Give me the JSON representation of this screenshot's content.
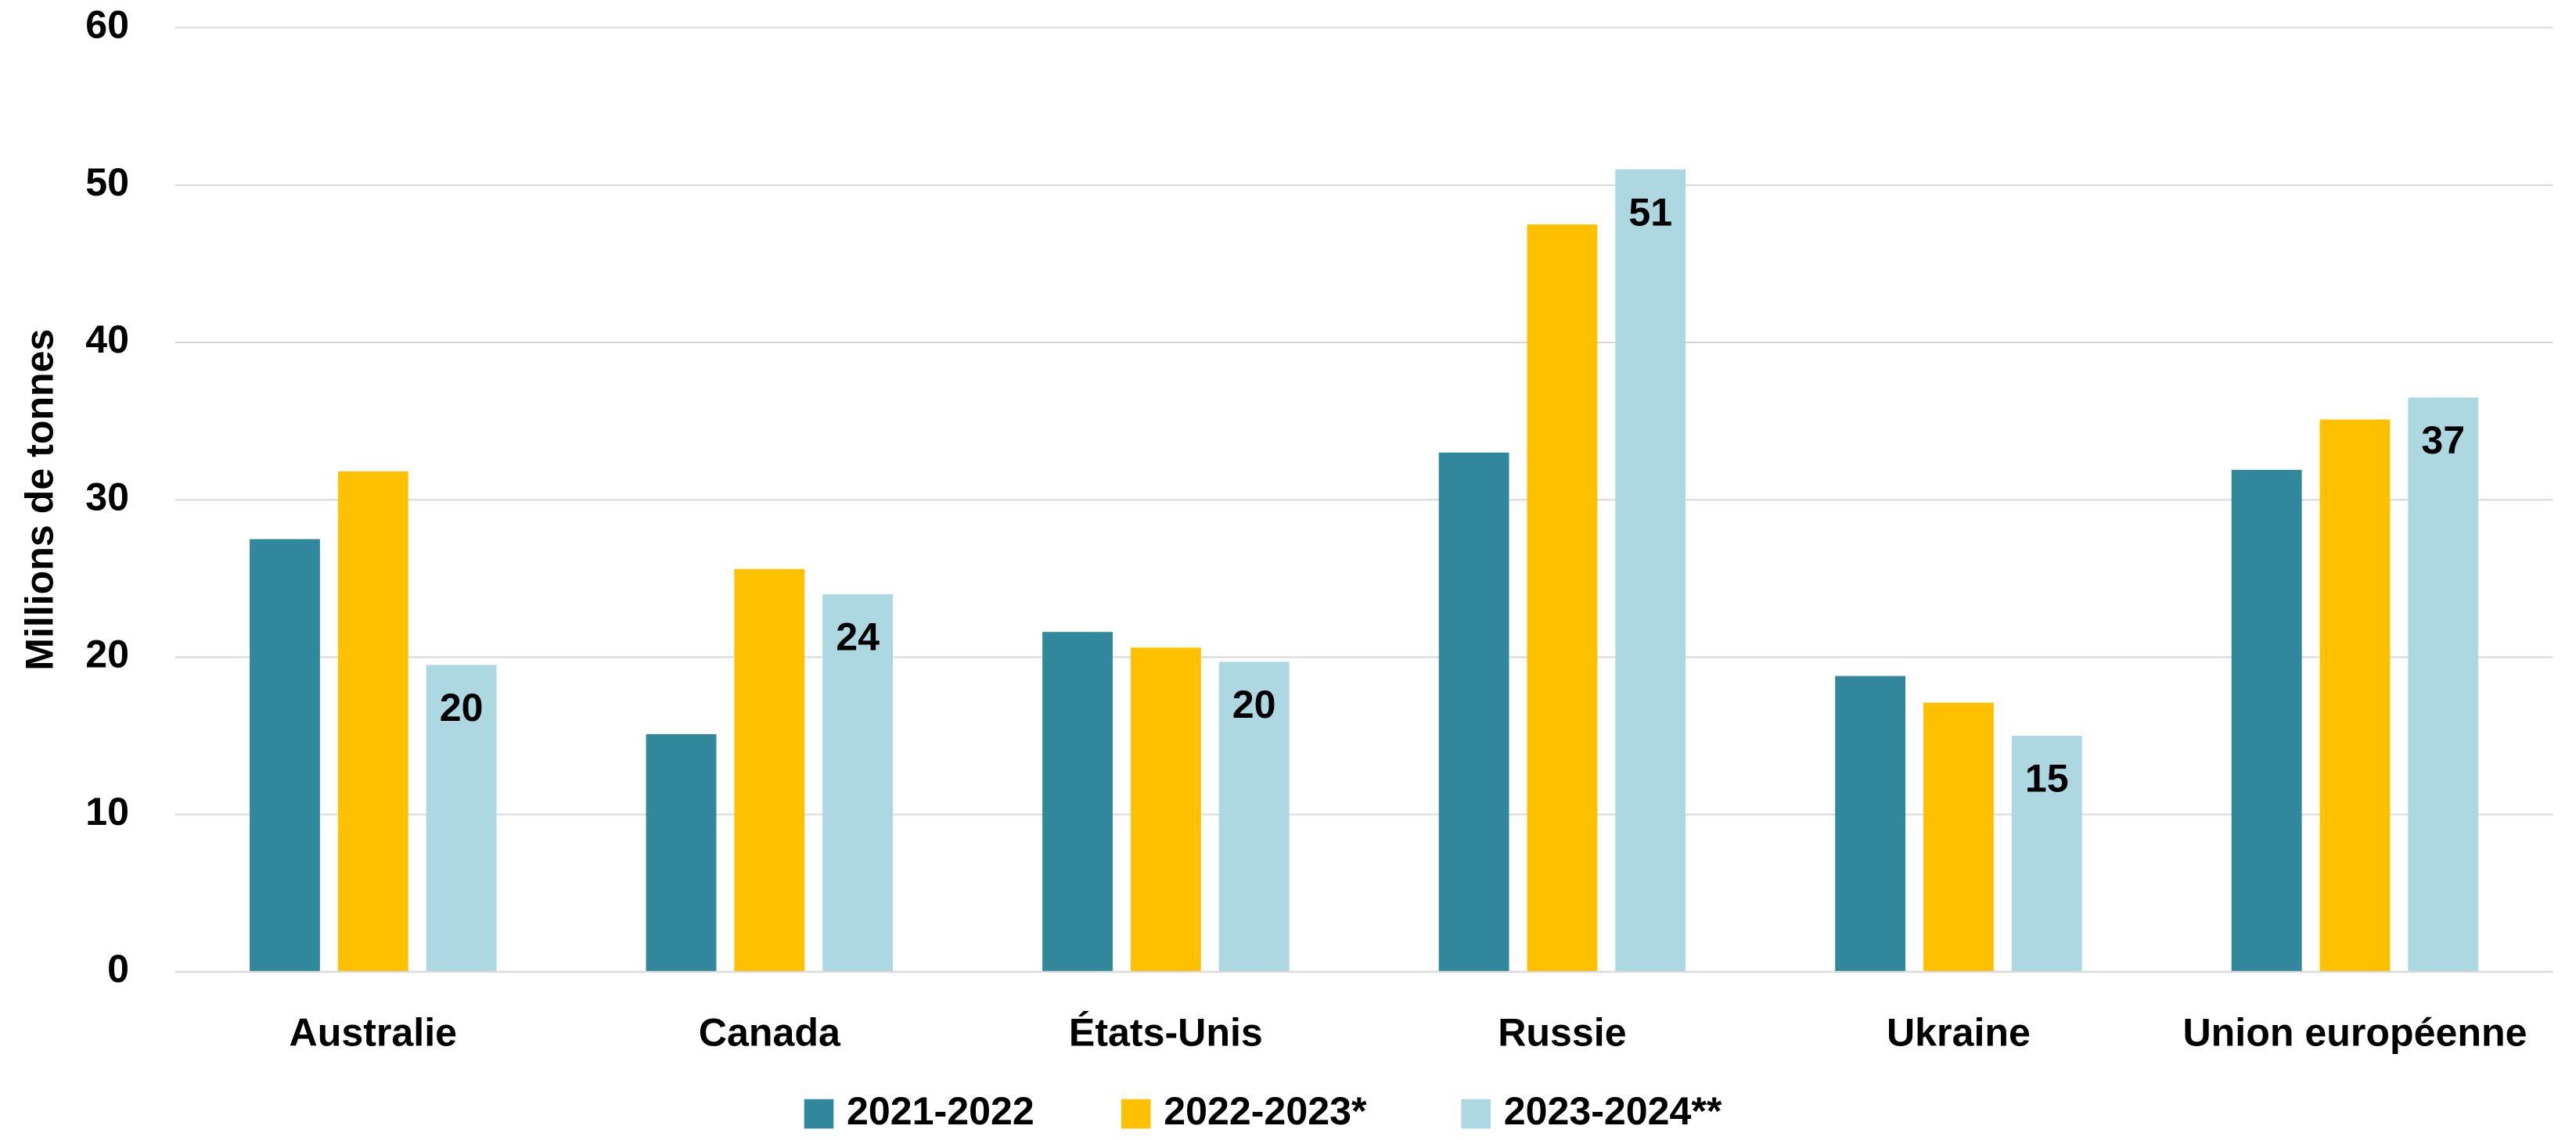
{
  "chart_data": {
    "type": "bar",
    "y_label": "Millions de tonnes",
    "categories": [
      "Australie",
      "Canada",
      "États-Unis",
      "Russie",
      "Ukraine",
      "Union européenne"
    ],
    "series": [
      {
        "name": "2021-2022",
        "color": "#31879c",
        "values": [
          27.5,
          15.1,
          21.6,
          33,
          18.8,
          31.9
        ]
      },
      {
        "name": "2022-2023*",
        "color": "#ffc000",
        "values": [
          31.8,
          25.6,
          20.6,
          47.5,
          17.1,
          35.1
        ]
      },
      {
        "name": "2023-2024**",
        "color": "#add8e2",
        "values": [
          19.5,
          24,
          19.7,
          51,
          15,
          36.5
        ],
        "value_labels": [
          "20",
          "24",
          "20",
          "51",
          "15",
          "37"
        ]
      }
    ],
    "ylim": [
      0,
      60
    ],
    "yticks": [
      0,
      10,
      20,
      30,
      40,
      50,
      60
    ],
    "grid": true,
    "legend": "bottom"
  }
}
